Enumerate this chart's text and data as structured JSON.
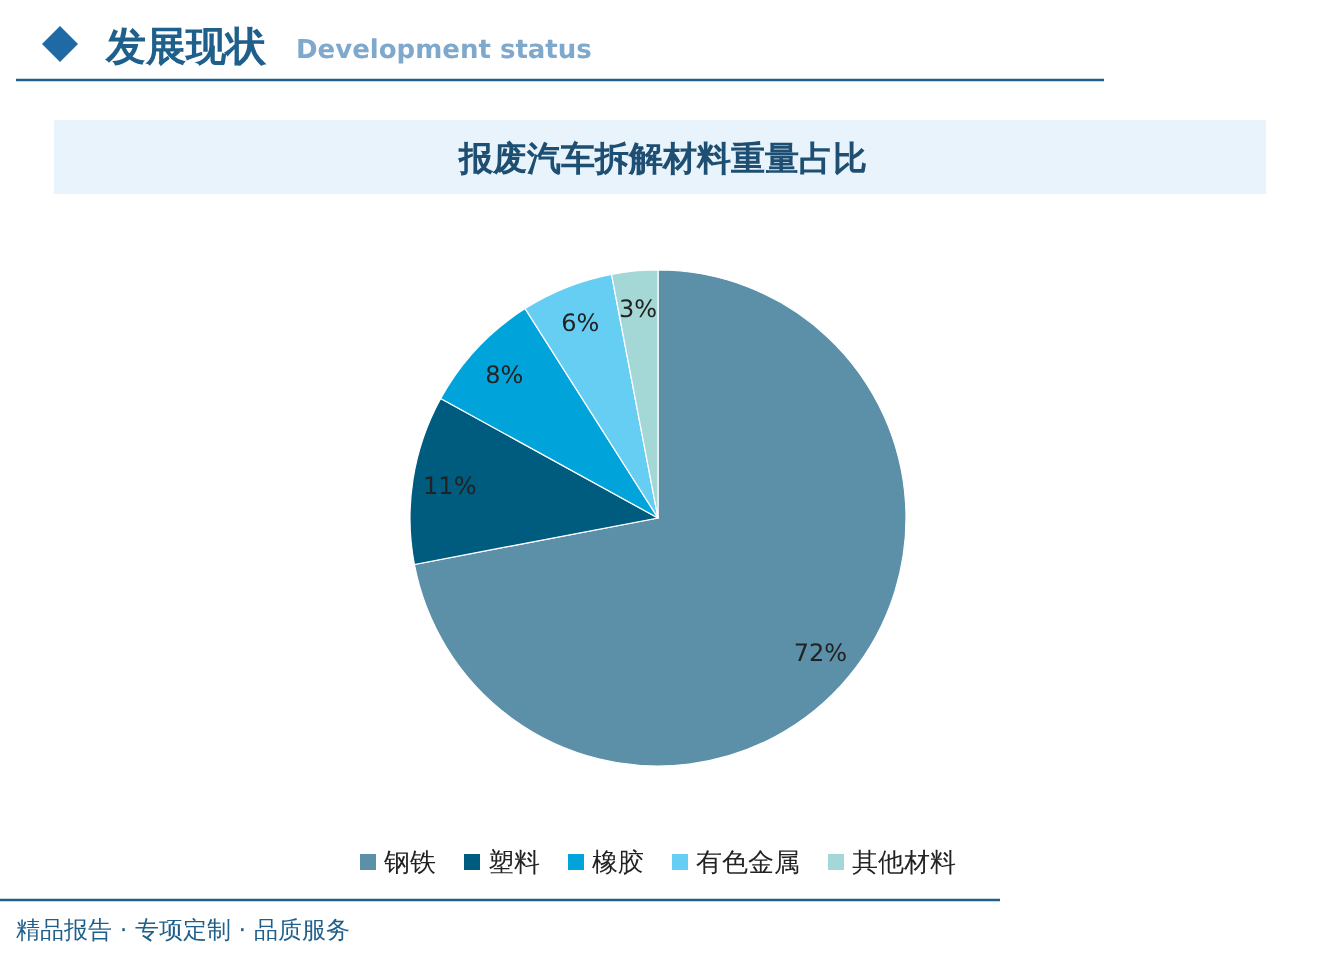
{
  "chart_data": {
    "type": "pie",
    "title": "报废汽车拆解材料重量占比",
    "categories": [
      "钢铁",
      "塑料",
      "橡胶",
      "有色金属",
      "其他材料"
    ],
    "values": [
      72,
      11,
      8,
      6,
      3
    ],
    "colors": [
      "#5b90a8",
      "#005c7e",
      "#00a4da",
      "#66cdf3",
      "#a4d8d6"
    ],
    "value_labels": [
      "72%",
      "11%",
      "8%",
      "6%",
      "3%"
    ],
    "legend": "bottom",
    "annotations": [
      "发展现状",
      "Development status",
      "精品报告 · 专项定制 · 品质服务"
    ]
  }
}
